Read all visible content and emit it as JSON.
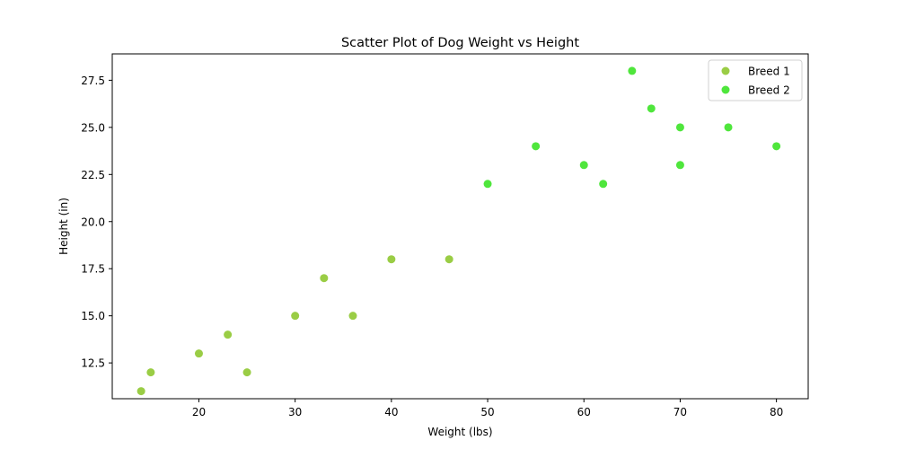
{
  "chart_data": {
    "type": "scatter",
    "title": "Scatter Plot of Dog Weight vs Height",
    "xlabel": "Weight (lbs)",
    "ylabel": "Height (in)",
    "xlim": [
      11,
      83.3
    ],
    "ylim": [
      10.6,
      28.9
    ],
    "xticks": [
      20,
      30,
      40,
      50,
      60,
      70,
      80
    ],
    "xtick_labels": [
      "20",
      "30",
      "40",
      "50",
      "60",
      "70",
      "80"
    ],
    "yticks": [
      12.5,
      15.0,
      17.5,
      20.0,
      22.5,
      25.0,
      27.5
    ],
    "ytick_labels": [
      "12.5",
      "15.0",
      "17.5",
      "20.0",
      "22.5",
      "25.0",
      "27.5"
    ],
    "grid": false,
    "legend_position": "top-right",
    "series": [
      {
        "name": "Breed 1",
        "color": "#9ACD45",
        "points": [
          [
            14,
            11
          ],
          [
            15,
            12
          ],
          [
            20,
            13
          ],
          [
            23,
            14
          ],
          [
            25,
            12
          ],
          [
            30,
            15
          ],
          [
            33,
            17
          ],
          [
            36,
            15
          ],
          [
            40,
            18
          ],
          [
            46,
            18
          ]
        ]
      },
      {
        "name": "Breed 2",
        "color": "#4FE63C",
        "points": [
          [
            50,
            22
          ],
          [
            55,
            24
          ],
          [
            60,
            23
          ],
          [
            62,
            22
          ],
          [
            65,
            28
          ],
          [
            67,
            26
          ],
          [
            70,
            25
          ],
          [
            70,
            23
          ],
          [
            75,
            25
          ],
          [
            80,
            24
          ]
        ]
      }
    ]
  }
}
